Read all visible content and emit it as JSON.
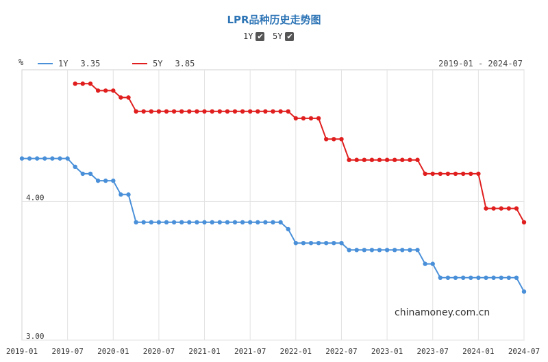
{
  "chart_data": {
    "type": "line",
    "title": "LPR品种历史走势图",
    "unit": "%",
    "date_range": "2019-01 - 2024-07",
    "x_ticks": [
      "2019-01",
      "2019-07",
      "2020-01",
      "2020-07",
      "2021-01",
      "2021-07",
      "2022-01",
      "2022-07",
      "2023-01",
      "2023-07",
      "2024-01",
      "2024-07"
    ],
    "y_ticks": [
      {
        "value": 3.0,
        "label": "3.00"
      },
      {
        "value": 4.0,
        "label": "4.00"
      }
    ],
    "ylim": [
      3.0,
      4.95
    ],
    "grid": true,
    "legend_position": "top-left",
    "series": [
      {
        "name": "1Y",
        "latest": "3.35",
        "color": "#4a90d9",
        "points": [
          [
            "2019-01",
            4.31
          ],
          [
            "2019-02",
            4.31
          ],
          [
            "2019-03",
            4.31
          ],
          [
            "2019-04",
            4.31
          ],
          [
            "2019-05",
            4.31
          ],
          [
            "2019-06",
            4.31
          ],
          [
            "2019-07",
            4.31
          ],
          [
            "2019-08",
            4.25
          ],
          [
            "2019-09",
            4.2
          ],
          [
            "2019-10",
            4.2
          ],
          [
            "2019-11",
            4.15
          ],
          [
            "2019-12",
            4.15
          ],
          [
            "2020-01",
            4.15
          ],
          [
            "2020-02",
            4.05
          ],
          [
            "2020-03",
            4.05
          ],
          [
            "2020-04",
            3.85
          ],
          [
            "2020-05",
            3.85
          ],
          [
            "2020-06",
            3.85
          ],
          [
            "2020-07",
            3.85
          ],
          [
            "2020-08",
            3.85
          ],
          [
            "2020-09",
            3.85
          ],
          [
            "2020-10",
            3.85
          ],
          [
            "2020-11",
            3.85
          ],
          [
            "2020-12",
            3.85
          ],
          [
            "2021-01",
            3.85
          ],
          [
            "2021-02",
            3.85
          ],
          [
            "2021-03",
            3.85
          ],
          [
            "2021-04",
            3.85
          ],
          [
            "2021-05",
            3.85
          ],
          [
            "2021-06",
            3.85
          ],
          [
            "2021-07",
            3.85
          ],
          [
            "2021-08",
            3.85
          ],
          [
            "2021-09",
            3.85
          ],
          [
            "2021-10",
            3.85
          ],
          [
            "2021-11",
            3.85
          ],
          [
            "2021-12",
            3.8
          ],
          [
            "2022-01",
            3.7
          ],
          [
            "2022-02",
            3.7
          ],
          [
            "2022-03",
            3.7
          ],
          [
            "2022-04",
            3.7
          ],
          [
            "2022-05",
            3.7
          ],
          [
            "2022-06",
            3.7
          ],
          [
            "2022-07",
            3.7
          ],
          [
            "2022-08",
            3.65
          ],
          [
            "2022-09",
            3.65
          ],
          [
            "2022-10",
            3.65
          ],
          [
            "2022-11",
            3.65
          ],
          [
            "2022-12",
            3.65
          ],
          [
            "2023-01",
            3.65
          ],
          [
            "2023-02",
            3.65
          ],
          [
            "2023-03",
            3.65
          ],
          [
            "2023-04",
            3.65
          ],
          [
            "2023-05",
            3.65
          ],
          [
            "2023-06",
            3.55
          ],
          [
            "2023-07",
            3.55
          ],
          [
            "2023-08",
            3.45
          ],
          [
            "2023-09",
            3.45
          ],
          [
            "2023-10",
            3.45
          ],
          [
            "2023-11",
            3.45
          ],
          [
            "2023-12",
            3.45
          ],
          [
            "2024-01",
            3.45
          ],
          [
            "2024-02",
            3.45
          ],
          [
            "2024-03",
            3.45
          ],
          [
            "2024-04",
            3.45
          ],
          [
            "2024-05",
            3.45
          ],
          [
            "2024-06",
            3.45
          ],
          [
            "2024-07",
            3.35
          ]
        ]
      },
      {
        "name": "5Y",
        "latest": "3.85",
        "color": "#e01e1e",
        "points": [
          [
            "2019-08",
            4.85
          ],
          [
            "2019-09",
            4.85
          ],
          [
            "2019-10",
            4.85
          ],
          [
            "2019-11",
            4.8
          ],
          [
            "2019-12",
            4.8
          ],
          [
            "2020-01",
            4.8
          ],
          [
            "2020-02",
            4.75
          ],
          [
            "2020-03",
            4.75
          ],
          [
            "2020-04",
            4.65
          ],
          [
            "2020-05",
            4.65
          ],
          [
            "2020-06",
            4.65
          ],
          [
            "2020-07",
            4.65
          ],
          [
            "2020-08",
            4.65
          ],
          [
            "2020-09",
            4.65
          ],
          [
            "2020-10",
            4.65
          ],
          [
            "2020-11",
            4.65
          ],
          [
            "2020-12",
            4.65
          ],
          [
            "2021-01",
            4.65
          ],
          [
            "2021-02",
            4.65
          ],
          [
            "2021-03",
            4.65
          ],
          [
            "2021-04",
            4.65
          ],
          [
            "2021-05",
            4.65
          ],
          [
            "2021-06",
            4.65
          ],
          [
            "2021-07",
            4.65
          ],
          [
            "2021-08",
            4.65
          ],
          [
            "2021-09",
            4.65
          ],
          [
            "2021-10",
            4.65
          ],
          [
            "2021-11",
            4.65
          ],
          [
            "2021-12",
            4.65
          ],
          [
            "2022-01",
            4.6
          ],
          [
            "2022-02",
            4.6
          ],
          [
            "2022-03",
            4.6
          ],
          [
            "2022-04",
            4.6
          ],
          [
            "2022-05",
            4.45
          ],
          [
            "2022-06",
            4.45
          ],
          [
            "2022-07",
            4.45
          ],
          [
            "2022-08",
            4.3
          ],
          [
            "2022-09",
            4.3
          ],
          [
            "2022-10",
            4.3
          ],
          [
            "2022-11",
            4.3
          ],
          [
            "2022-12",
            4.3
          ],
          [
            "2023-01",
            4.3
          ],
          [
            "2023-02",
            4.3
          ],
          [
            "2023-03",
            4.3
          ],
          [
            "2023-04",
            4.3
          ],
          [
            "2023-05",
            4.3
          ],
          [
            "2023-06",
            4.2
          ],
          [
            "2023-07",
            4.2
          ],
          [
            "2023-08",
            4.2
          ],
          [
            "2023-09",
            4.2
          ],
          [
            "2023-10",
            4.2
          ],
          [
            "2023-11",
            4.2
          ],
          [
            "2023-12",
            4.2
          ],
          [
            "2024-01",
            4.2
          ],
          [
            "2024-02",
            3.95
          ],
          [
            "2024-03",
            3.95
          ],
          [
            "2024-04",
            3.95
          ],
          [
            "2024-05",
            3.95
          ],
          [
            "2024-06",
            3.95
          ],
          [
            "2024-07",
            3.85
          ]
        ]
      }
    ]
  },
  "toggles": [
    {
      "label": "1Y",
      "checked": "✔"
    },
    {
      "label": "5Y",
      "checked": "✔"
    }
  ],
  "watermark": "chinamoney.com.cn"
}
